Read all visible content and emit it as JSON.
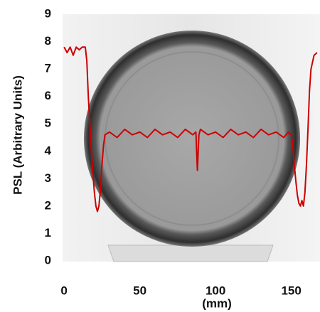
{
  "chart_data": {
    "type": "line",
    "y_label": "PSL (Arbitrary Units)",
    "x_label": "(mm)",
    "x": [
      0,
      2,
      4,
      6,
      8,
      10,
      12,
      14,
      15,
      16,
      17,
      18,
      19,
      20,
      21,
      22,
      23,
      24,
      25,
      26,
      27,
      30,
      35,
      40,
      45,
      50,
      55,
      60,
      65,
      70,
      75,
      80,
      85,
      87,
      88,
      89,
      90,
      95,
      100,
      105,
      110,
      115,
      120,
      125,
      130,
      135,
      140,
      145,
      148,
      150,
      151,
      152,
      153,
      154,
      155,
      156,
      157,
      158,
      159,
      160,
      161,
      162,
      163,
      165,
      167
    ],
    "series": [
      {
        "color": "#cc0000",
        "values": [
          7.8,
          7.6,
          7.8,
          7.5,
          7.8,
          7.7,
          7.8,
          7.8,
          7.3,
          6.0,
          5.0,
          4.0,
          3.2,
          2.5,
          2.0,
          1.8,
          2.0,
          2.6,
          3.5,
          4.2,
          4.6,
          4.7,
          4.5,
          4.8,
          4.6,
          4.7,
          4.5,
          4.8,
          4.6,
          4.7,
          4.5,
          4.8,
          4.6,
          4.7,
          3.3,
          4.6,
          4.8,
          4.6,
          4.7,
          4.5,
          4.8,
          4.6,
          4.7,
          4.5,
          4.8,
          4.6,
          4.7,
          4.5,
          4.7,
          4.6,
          4.2,
          3.5,
          2.9,
          2.4,
          2.1,
          2.0,
          2.2,
          2.0,
          2.5,
          3.5,
          4.8,
          6.2,
          7.0,
          7.5,
          7.6
        ]
      }
    ],
    "xlim": [
      -1,
      168
    ],
    "ylim": [
      0,
      9
    ],
    "xticks": [
      0,
      50,
      100,
      150
    ],
    "yticks": [
      0,
      1,
      2,
      3,
      4,
      5,
      6,
      7,
      8,
      9
    ]
  }
}
